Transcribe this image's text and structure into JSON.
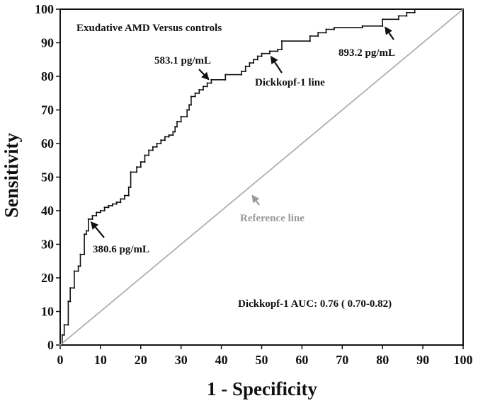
{
  "chart_data": {
    "type": "line",
    "title": "Exudative AMD Versus controls",
    "xlabel": "1 - Specificity",
    "ylabel": "Sensitivity",
    "xlim": [
      0,
      100
    ],
    "ylim": [
      0,
      100
    ],
    "xticks": [
      0,
      10,
      20,
      30,
      40,
      50,
      60,
      70,
      80,
      90,
      100
    ],
    "yticks": [
      0,
      10,
      20,
      30,
      40,
      50,
      60,
      70,
      80,
      90,
      100
    ],
    "grid": false,
    "series": [
      {
        "name": "Dickkopf-1 line",
        "color": "#111111",
        "points": [
          [
            0,
            0
          ],
          [
            0.5,
            0
          ],
          [
            0.5,
            3
          ],
          [
            1,
            3
          ],
          [
            1,
            6
          ],
          [
            2,
            6
          ],
          [
            2,
            13
          ],
          [
            2.5,
            13
          ],
          [
            2.5,
            17
          ],
          [
            3.5,
            17
          ],
          [
            3.5,
            22
          ],
          [
            4.5,
            22
          ],
          [
            4.5,
            23.5
          ],
          [
            5,
            23.5
          ],
          [
            5,
            27
          ],
          [
            6,
            27
          ],
          [
            6,
            33
          ],
          [
            6.5,
            33
          ],
          [
            6.5,
            34
          ],
          [
            7,
            34
          ],
          [
            7,
            37.5
          ],
          [
            8,
            37.5
          ],
          [
            8,
            38.5
          ],
          [
            9,
            38.5
          ],
          [
            9,
            39.5
          ],
          [
            10,
            39.5
          ],
          [
            10,
            40
          ],
          [
            11,
            40
          ],
          [
            11,
            41
          ],
          [
            12,
            41
          ],
          [
            12,
            41.5
          ],
          [
            13,
            41.5
          ],
          [
            13,
            42
          ],
          [
            14,
            42
          ],
          [
            14,
            42.5
          ],
          [
            15,
            42.5
          ],
          [
            15,
            43.5
          ],
          [
            16,
            43.5
          ],
          [
            16,
            44.5
          ],
          [
            17,
            44.5
          ],
          [
            17,
            47
          ],
          [
            17.5,
            47
          ],
          [
            17.5,
            51.5
          ],
          [
            19,
            51.5
          ],
          [
            19,
            53
          ],
          [
            20,
            53
          ],
          [
            20,
            54.5
          ],
          [
            21,
            54.5
          ],
          [
            21,
            56.5
          ],
          [
            22,
            56.5
          ],
          [
            22,
            58
          ],
          [
            23,
            58
          ],
          [
            23,
            59
          ],
          [
            24,
            59
          ],
          [
            24,
            60
          ],
          [
            25,
            60
          ],
          [
            25,
            61
          ],
          [
            26,
            61
          ],
          [
            26,
            62
          ],
          [
            27,
            62
          ],
          [
            27,
            62.5
          ],
          [
            28,
            62.5
          ],
          [
            28,
            63.5
          ],
          [
            28.5,
            63.5
          ],
          [
            28.5,
            65
          ],
          [
            29,
            65
          ],
          [
            29,
            66.5
          ],
          [
            30,
            66.5
          ],
          [
            30,
            68
          ],
          [
            31.5,
            68
          ],
          [
            31.5,
            70
          ],
          [
            32,
            70
          ],
          [
            32,
            71.5
          ],
          [
            32.5,
            71.5
          ],
          [
            32.5,
            74
          ],
          [
            33.5,
            74
          ],
          [
            33.5,
            75
          ],
          [
            34.5,
            75
          ],
          [
            34.5,
            76
          ],
          [
            35.5,
            76
          ],
          [
            35.5,
            77
          ],
          [
            36.5,
            77
          ],
          [
            36.5,
            78
          ],
          [
            37.5,
            78
          ],
          [
            37.5,
            79
          ],
          [
            41,
            79
          ],
          [
            41,
            80.5
          ],
          [
            45,
            80.5
          ],
          [
            45,
            81.5
          ],
          [
            46,
            81.5
          ],
          [
            46,
            83
          ],
          [
            47,
            83
          ],
          [
            47,
            84
          ],
          [
            48,
            84
          ],
          [
            48,
            85
          ],
          [
            49,
            85
          ],
          [
            49,
            86
          ],
          [
            50,
            86
          ],
          [
            50,
            86.8
          ],
          [
            52,
            86.8
          ],
          [
            52,
            87.5
          ],
          [
            54,
            87.5
          ],
          [
            54,
            88
          ],
          [
            55,
            88
          ],
          [
            55,
            90.5
          ],
          [
            62,
            90.5
          ],
          [
            62,
            92
          ],
          [
            64,
            92
          ],
          [
            64,
            93
          ],
          [
            66,
            93
          ],
          [
            66,
            94
          ],
          [
            68,
            94
          ],
          [
            68,
            94.5
          ],
          [
            75,
            94.5
          ],
          [
            75,
            95
          ],
          [
            80,
            95
          ],
          [
            80,
            97
          ],
          [
            84,
            97
          ],
          [
            84,
            98
          ],
          [
            86,
            98
          ],
          [
            86,
            99
          ],
          [
            88,
            99
          ],
          [
            88,
            100
          ],
          [
            100,
            100
          ]
        ]
      },
      {
        "name": "Reference line",
        "color": "#a8a8a8",
        "points": [
          [
            0,
            0
          ],
          [
            100,
            100
          ]
        ]
      }
    ],
    "annotations": [
      {
        "text": "583.1 pg/mL",
        "point": [
          36.5,
          78
        ]
      },
      {
        "text": "Dickkopf-1 line",
        "point": [
          52,
          87
        ]
      },
      {
        "text": "893.2 pg/mL",
        "point": [
          80,
          95.5
        ]
      },
      {
        "text": "380.6 pg/mL",
        "point": [
          7,
          37.5
        ]
      },
      {
        "text": "Reference line",
        "point": [
          47,
          45
        ]
      },
      {
        "text": "Dickkopf-1 AUC: 0.76 ( 0.70-0.82)"
      }
    ]
  }
}
